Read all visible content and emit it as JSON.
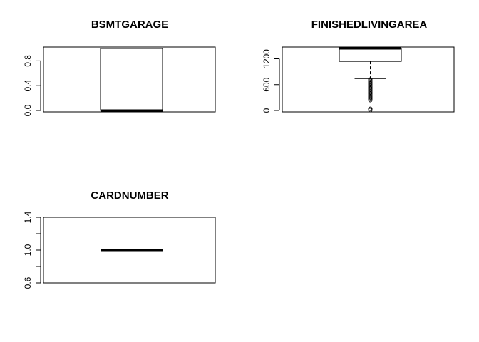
{
  "chart_data": [
    {
      "type": "boxplot",
      "title": "BSMTGARAGE",
      "xlabel": "",
      "ylabel": "",
      "ylim": [
        0,
        1
      ],
      "yticks": [
        0.0,
        0.4,
        0.8
      ],
      "ytick_labels": [
        "0.0",
        "0.4",
        "0.8"
      ],
      "box": {
        "whisker_low": 0,
        "q1": 0,
        "median": 0,
        "q3": 1,
        "whisker_high": 1
      },
      "outliers": []
    },
    {
      "type": "boxplot",
      "title": "FINISHEDLIVINGAREA",
      "xlabel": "",
      "ylabel": "",
      "ylim": [
        0,
        1440
      ],
      "yticks": [
        0,
        600,
        1200
      ],
      "ytick_labels": [
        "0",
        "600",
        "1200"
      ],
      "box": {
        "whisker_low": 740,
        "q1": 1140,
        "median": 1440,
        "q3": 1440,
        "whisker_high": 1440
      },
      "outliers": [
        720,
        690,
        660,
        630,
        600,
        570,
        540,
        510,
        480,
        450,
        420,
        390,
        360,
        330,
        300,
        270,
        240,
        40,
        10
      ]
    },
    {
      "type": "boxplot",
      "title": "CARDNUMBER",
      "xlabel": "",
      "ylabel": "",
      "ylim": [
        0.6,
        1.4
      ],
      "yticks": [
        0.6,
        0.8,
        1.0,
        1.2,
        1.4
      ],
      "ytick_labels": [
        "0.6",
        "",
        "1.0",
        "",
        "1.4"
      ],
      "box": {
        "whisker_low": 1,
        "q1": 1,
        "median": 1,
        "q3": 1,
        "whisker_high": 1
      },
      "outliers": []
    }
  ]
}
